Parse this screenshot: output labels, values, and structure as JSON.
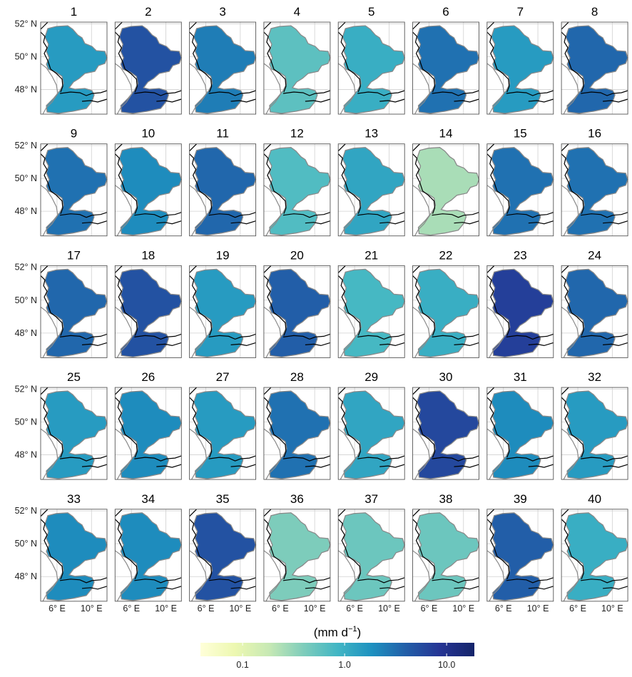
{
  "chart_data": {
    "type": "choropleth-grid",
    "panels": [
      {
        "title": "1",
        "value": 1.5
      },
      {
        "title": "2",
        "value": 5
      },
      {
        "title": "3",
        "value": 2.5
      },
      {
        "title": "4",
        "value": 0.6
      },
      {
        "title": "5",
        "value": 1.0
      },
      {
        "title": "6",
        "value": 3
      },
      {
        "title": "7",
        "value": 1.5
      },
      {
        "title": "8",
        "value": 3.5
      },
      {
        "title": "9",
        "value": 3
      },
      {
        "title": "10",
        "value": 2
      },
      {
        "title": "11",
        "value": 3.5
      },
      {
        "title": "12",
        "value": 0.7
      },
      {
        "title": "13",
        "value": 1.2
      },
      {
        "title": "14",
        "value": 0.25
      },
      {
        "title": "15",
        "value": 3
      },
      {
        "title": "16",
        "value": 3
      },
      {
        "title": "17",
        "value": 3.5
      },
      {
        "title": "18",
        "value": 5
      },
      {
        "title": "19",
        "value": 1.5
      },
      {
        "title": "20",
        "value": 4
      },
      {
        "title": "21",
        "value": 0.8
      },
      {
        "title": "22",
        "value": 1.0
      },
      {
        "title": "23",
        "value": 7
      },
      {
        "title": "24",
        "value": 3.5
      },
      {
        "title": "25",
        "value": 1.5
      },
      {
        "title": "26",
        "value": 2
      },
      {
        "title": "27",
        "value": 1.5
      },
      {
        "title": "28",
        "value": 3
      },
      {
        "title": "29",
        "value": 1.2
      },
      {
        "title": "30",
        "value": 6
      },
      {
        "title": "31",
        "value": 2
      },
      {
        "title": "32",
        "value": 1.5
      },
      {
        "title": "33",
        "value": 2
      },
      {
        "title": "34",
        "value": 2
      },
      {
        "title": "35",
        "value": 5
      },
      {
        "title": "36",
        "value": 0.4
      },
      {
        "title": "37",
        "value": 0.5
      },
      {
        "title": "38",
        "value": 0.5
      },
      {
        "title": "39",
        "value": 4
      },
      {
        "title": "40",
        "value": 1.0
      }
    ],
    "xlim": [
      4.1,
      11.8
    ],
    "ylim": [
      46.5,
      52.1
    ],
    "xticks": [
      {
        "value": 6,
        "label": "6° E"
      },
      {
        "value": 10,
        "label": "10° E"
      }
    ],
    "yticks": [
      {
        "value": 52,
        "label": "52° N"
      },
      {
        "value": 50,
        "label": "50° N"
      },
      {
        "value": 48,
        "label": "48° N"
      }
    ],
    "grid": true,
    "colorbar": {
      "title": "(mm d",
      "title_exponent": "−1",
      "title_close": ")",
      "log": true,
      "clim": [
        0.0386,
        18.7
      ],
      "ticks": [
        0.1,
        {
          "value": 1,
          "label": "1.0"
        },
        {
          "value": 10,
          "label": "10.0"
        }
      ],
      "colormap": [
        "#ffffd9",
        "#edf8b1",
        "#c7e9b4",
        "#7fcdbb",
        "#41b6c4",
        "#1d91c0",
        "#225ea8",
        "#253494",
        "#14246a"
      ]
    }
  }
}
